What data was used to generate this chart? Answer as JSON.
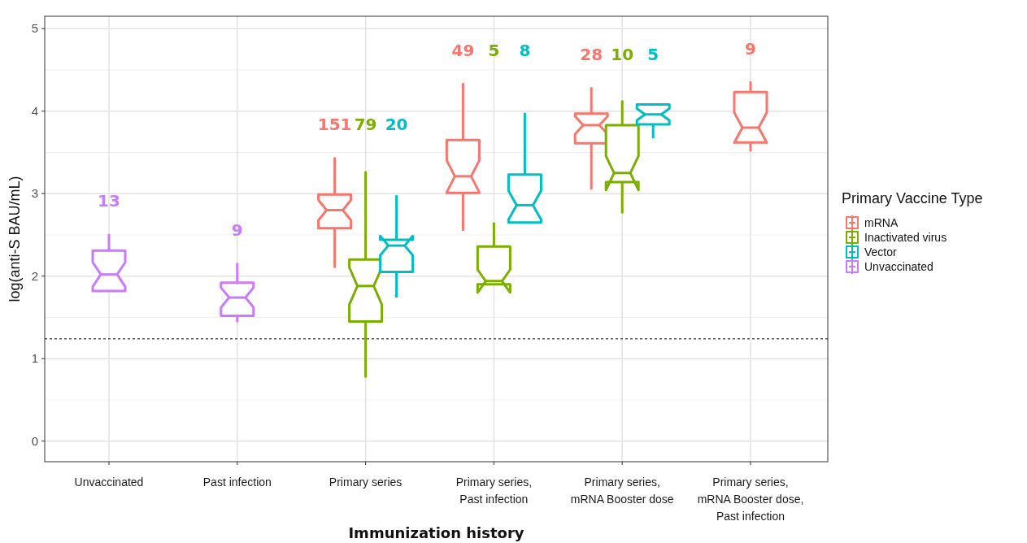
{
  "chart_data": {
    "type": "box",
    "xlabel": "Immunization history",
    "ylabel": "log(anti-S BAU/mL)",
    "legend_title": "Primary Vaccine Type",
    "legend": "right",
    "grid": true,
    "categories": [
      "Unvaccinated",
      "Past infection",
      "Primary series",
      "Primary series,\nPast infection",
      "Primary series,\nmRNA Booster dose",
      "Primary series,\nmRNA Booster dose,\nPast infection"
    ],
    "ylim": [
      -0.25,
      5.15
    ],
    "yticks": [
      0,
      1,
      2,
      3,
      4,
      5
    ],
    "ref_lines": [
      {
        "axis": "y",
        "value": 1.24,
        "color": "#555555",
        "line_style": "dotted"
      }
    ],
    "series": [
      {
        "name": "mRNA",
        "color": "#f8766d",
        "value_labels": [
          null,
          null,
          "151",
          "49",
          "28",
          "9"
        ],
        "boxes": [
          null,
          null,
          {
            "low": 2.1,
            "q1": 2.58,
            "median": 2.8,
            "q3": 2.99,
            "high": 3.44
          },
          {
            "low": 2.55,
            "q1": 3.01,
            "median": 3.21,
            "q3": 3.65,
            "high": 4.34
          },
          {
            "low": 3.05,
            "q1": 3.61,
            "median": 3.83,
            "q3": 3.97,
            "high": 4.29
          },
          {
            "low": 3.51,
            "q1": 3.62,
            "median": 3.8,
            "q3": 4.23,
            "high": 4.36
          }
        ]
      },
      {
        "name": "Inactivated virus",
        "color": "#7cae00",
        "value_labels": [
          null,
          null,
          "79",
          "5",
          "10",
          null
        ],
        "boxes": [
          null,
          null,
          {
            "low": 0.77,
            "q1": 1.45,
            "median": 1.88,
            "q3": 2.2,
            "high": 3.27
          },
          {
            "low": 1.9,
            "q1": 1.9,
            "median": 1.94,
            "q3": 2.36,
            "high": 2.65
          },
          {
            "low": 2.76,
            "q1": 3.14,
            "median": 3.25,
            "q3": 3.83,
            "high": 4.13
          },
          null
        ]
      },
      {
        "name": "Vector",
        "color": "#00bfc4",
        "value_labels": [
          null,
          null,
          "20",
          "8",
          "5",
          null
        ],
        "boxes": [
          null,
          null,
          {
            "low": 1.74,
            "q1": 2.05,
            "median": 2.37,
            "q3": 2.44,
            "high": 2.98
          },
          {
            "low": 2.65,
            "q1": 2.65,
            "median": 2.86,
            "q3": 3.23,
            "high": 3.98
          },
          {
            "low": 3.67,
            "q1": 3.84,
            "median": 3.96,
            "q3": 4.08,
            "high": 4.08
          },
          null
        ]
      },
      {
        "name": "Unvaccinated",
        "color": "#c77cff",
        "value_labels": [
          "13",
          "9",
          null,
          null,
          null,
          null
        ],
        "boxes": [
          {
            "low": 1.82,
            "q1": 1.82,
            "median": 2.02,
            "q3": 2.31,
            "high": 2.51
          },
          {
            "low": 1.44,
            "q1": 1.52,
            "median": 1.74,
            "q3": 1.92,
            "high": 2.16
          },
          null,
          null,
          null,
          null
        ]
      }
    ]
  }
}
